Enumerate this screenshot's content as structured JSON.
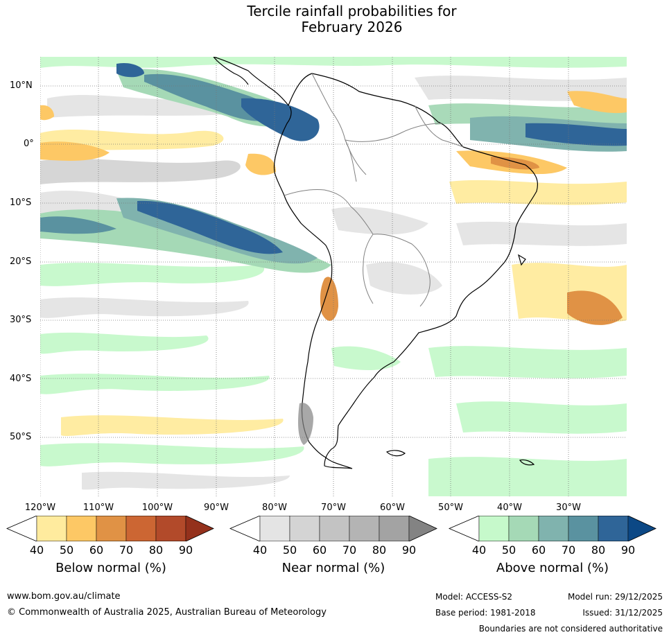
{
  "title": {
    "line1": "Tercile rainfall probabilities for",
    "line2": "February 2026"
  },
  "latitude_labels": [
    "10°N",
    "0°",
    "10°S",
    "20°S",
    "30°S",
    "40°S",
    "50°S"
  ],
  "longitude_labels": [
    "120°W",
    "110°W",
    "100°W",
    "90°W",
    "80°W",
    "70°W",
    "60°W",
    "50°W",
    "40°W",
    "30°W"
  ],
  "colorbars": {
    "below": {
      "title": "Below normal (%)",
      "ticks": [
        "40",
        "50",
        "60",
        "70",
        "80",
        "90"
      ],
      "colors": [
        "#ffffff",
        "#ffeb9e",
        "#fdc865",
        "#e09245",
        "#cc6633",
        "#b24a2a",
        "#94311c"
      ]
    },
    "near": {
      "title": "Near normal (%)",
      "ticks": [
        "40",
        "50",
        "60",
        "70",
        "80",
        "90"
      ],
      "colors": [
        "#ffffff",
        "#e4e4e4",
        "#d4d4d4",
        "#c3c3c3",
        "#b4b4b4",
        "#a3a3a3",
        "#838383"
      ]
    },
    "above": {
      "title": "Above normal (%)",
      "ticks": [
        "40",
        "50",
        "60",
        "70",
        "80",
        "90"
      ],
      "colors": [
        "#ffffff",
        "#c6f9cb",
        "#a5d9b6",
        "#80b3ae",
        "#5a92a0",
        "#2f6598",
        "#0c4885"
      ]
    }
  },
  "footer": {
    "url": "www.bom.gov.au/climate",
    "copyright": "© Commonwealth of Australia 2025, Australian Bureau of Meteorology",
    "model": "Model: ACCESS-S2",
    "base_period": "Base period: 1981-2018",
    "model_run": "Model run: 29/12/2025",
    "issued": "Issued: 31/12/2025",
    "disclaimer": "Boundaries are not considered authoritative"
  }
}
